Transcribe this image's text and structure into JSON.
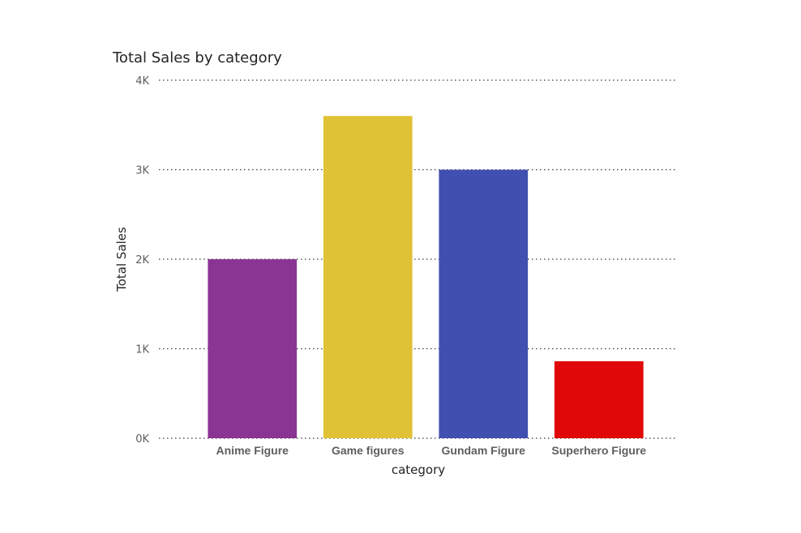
{
  "chart_data": {
    "type": "bar",
    "title": "Total Sales by category",
    "xlabel": "category",
    "ylabel": "Total Sales",
    "categories": [
      "Anime Figure",
      "Game figures",
      "Gundam Figure",
      "Superhero Figure"
    ],
    "values": [
      2000,
      3600,
      3000,
      860
    ],
    "colors": [
      "#8a3593",
      "#e0c236",
      "#4150b0",
      "#e00808"
    ],
    "yticks": [
      {
        "value": 0,
        "label": "0K"
      },
      {
        "value": 1000,
        "label": "1K"
      },
      {
        "value": 2000,
        "label": "2K"
      },
      {
        "value": 3000,
        "label": "3K"
      },
      {
        "value": 4000,
        "label": "4K"
      }
    ],
    "ylim": [
      0,
      4000
    ],
    "grid": true,
    "legend": "none"
  }
}
